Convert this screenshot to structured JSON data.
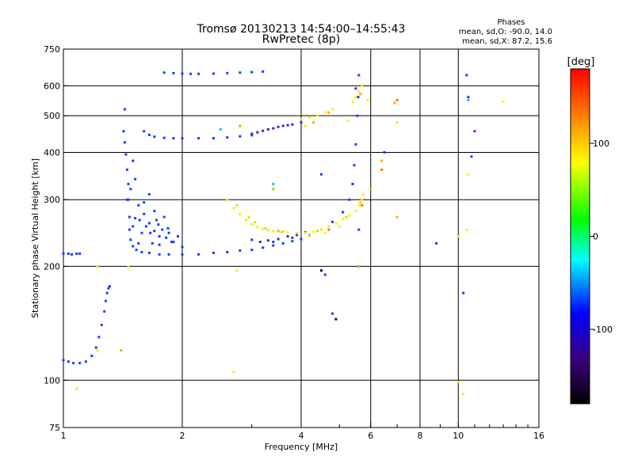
{
  "chart_data": {
    "type": "scatter",
    "title": "Tromsø 20130213 14:54:00–14:55:43",
    "subtitle": "RwPretec (8p)",
    "xlabel": "Frequency [MHz]",
    "ylabel": "Stationary phase Virtual Height [km]",
    "x_scale": "log",
    "y_scale": "log",
    "xlim": [
      1,
      16
    ],
    "ylim": [
      75,
      750
    ],
    "x_ticks": [
      1,
      2,
      4,
      6,
      8,
      10,
      16
    ],
    "x_tick_labels": [
      "1",
      "2",
      "4",
      "6",
      "8",
      "10",
      "16"
    ],
    "x_minor_ticks": [
      3,
      5,
      7,
      9,
      11,
      12,
      13,
      14,
      15
    ],
    "y_ticks": [
      75,
      100,
      200,
      300,
      400,
      500,
      600,
      750
    ],
    "y_tick_labels": [
      "75",
      "100",
      "200",
      "300",
      "400",
      "500",
      "600",
      "750"
    ],
    "grid": true,
    "phases_info": {
      "title": "Phases",
      "line1": "mean, sd,O: -90.0, 14.0",
      "line2": "mean, sd,X:  87.2, 15.6"
    },
    "colorbar": {
      "label": "[deg]",
      "range": [
        -180,
        180
      ],
      "ticks": [
        100,
        0,
        -100
      ],
      "tick_labels": [
        "100",
        "0",
        "-100"
      ],
      "colors": [
        "#ff0000",
        "#ff8000",
        "#ffff00",
        "#00ff00",
        "#00ffff",
        "#0000ff",
        "#3a007a",
        "#000000"
      ]
    },
    "series": [
      {
        "color": "#1040ff",
        "points": [
          [
            1.0,
            216
          ],
          [
            1.03,
            216
          ],
          [
            1.05,
            215
          ],
          [
            1.08,
            216
          ],
          [
            1.1,
            216
          ]
        ]
      },
      {
        "color": "#1040ff",
        "points": [
          [
            1.0,
            113
          ],
          [
            1.03,
            112
          ],
          [
            1.06,
            111
          ],
          [
            1.1,
            111
          ],
          [
            1.14,
            112
          ],
          [
            1.18,
            116
          ],
          [
            1.21,
            122
          ],
          [
            1.23,
            130
          ],
          [
            1.25,
            140
          ],
          [
            1.27,
            152
          ],
          [
            1.28,
            162
          ],
          [
            1.29,
            170
          ],
          [
            1.3,
            175
          ],
          [
            1.31,
            177
          ]
        ]
      },
      {
        "color": "#1040ff",
        "points": [
          [
            1.42,
            455
          ],
          [
            1.43,
            425
          ],
          [
            1.44,
            395
          ],
          [
            1.45,
            360
          ],
          [
            1.46,
            330
          ],
          [
            1.46,
            300
          ],
          [
            1.47,
            270
          ],
          [
            1.47,
            250
          ],
          [
            1.48,
            235
          ],
          [
            1.5,
            226
          ],
          [
            1.53,
            221
          ],
          [
            1.58,
            218
          ],
          [
            1.65,
            217
          ],
          [
            1.75,
            215
          ],
          [
            1.85,
            215
          ],
          [
            2.0,
            215
          ],
          [
            2.2,
            215
          ],
          [
            2.4,
            217
          ],
          [
            2.6,
            218
          ],
          [
            2.8,
            220
          ],
          [
            3.0,
            221
          ],
          [
            3.2,
            224
          ],
          [
            3.4,
            227
          ],
          [
            3.6,
            230
          ],
          [
            3.8,
            233
          ],
          [
            4.0,
            236
          ],
          [
            4.2,
            241
          ],
          [
            4.5,
            250
          ],
          [
            4.8,
            262
          ],
          [
            5.1,
            278
          ],
          [
            5.3,
            300
          ],
          [
            5.4,
            330
          ],
          [
            5.45,
            370
          ],
          [
            5.5,
            420
          ],
          [
            5.55,
            500
          ],
          [
            5.58,
            560
          ],
          [
            5.6,
            640
          ]
        ]
      },
      {
        "color": "#1040ff",
        "points": [
          [
            1.45,
            300
          ],
          [
            1.55,
            290
          ],
          [
            1.6,
            275
          ],
          [
            1.65,
            260
          ],
          [
            1.7,
            248
          ],
          [
            1.75,
            240
          ],
          [
            1.82,
            238
          ],
          [
            1.88,
            232
          ],
          [
            1.52,
            268
          ],
          [
            1.62,
            255
          ],
          [
            1.72,
            265
          ],
          [
            1.78,
            250
          ],
          [
            1.85,
            245
          ],
          [
            1.95,
            240
          ],
          [
            2.0,
            225
          ],
          [
            1.9,
            232
          ],
          [
            1.68,
            230
          ],
          [
            1.58,
            245
          ],
          [
            1.5,
            255
          ],
          [
            1.55,
            230
          ],
          [
            1.75,
            228
          ],
          [
            1.6,
            295
          ],
          [
            1.7,
            280
          ],
          [
            1.8,
            270
          ],
          [
            1.65,
            310
          ],
          [
            1.48,
            320
          ],
          [
            1.52,
            340
          ],
          [
            1.5,
            380
          ],
          [
            1.56,
            265
          ],
          [
            1.66,
            245
          ],
          [
            1.74,
            258
          ],
          [
            1.84,
            252
          ]
        ]
      },
      {
        "color": "#1040ff",
        "points": [
          [
            1.6,
            455
          ],
          [
            1.65,
            445
          ],
          [
            1.7,
            440
          ],
          [
            1.8,
            437
          ],
          [
            1.9,
            436
          ],
          [
            2.0,
            436
          ],
          [
            2.2,
            436
          ],
          [
            2.4,
            436
          ],
          [
            2.6,
            438
          ],
          [
            2.8,
            441
          ],
          [
            3.0,
            444
          ]
        ]
      },
      {
        "color": "#3030c0",
        "points": [
          [
            3.0,
            448
          ],
          [
            3.1,
            452
          ],
          [
            3.2,
            456
          ],
          [
            3.3,
            460
          ],
          [
            3.4,
            463
          ],
          [
            3.5,
            467
          ],
          [
            3.6,
            470
          ],
          [
            3.7,
            472
          ],
          [
            3.8,
            474
          ]
        ]
      },
      {
        "color": "#3030c0",
        "points": [
          [
            3.0,
            235
          ],
          [
            3.15,
            232
          ],
          [
            3.3,
            234
          ],
          [
            3.5,
            236
          ],
          [
            3.7,
            240
          ],
          [
            3.9,
            242
          ],
          [
            4.1,
            246
          ],
          [
            3.4,
            232
          ],
          [
            3.8,
            238
          ]
        ]
      },
      {
        "color": "#1040ff",
        "points": [
          [
            1.8,
            650
          ],
          [
            1.9,
            648
          ],
          [
            2.0,
            646
          ],
          [
            2.1,
            645
          ],
          [
            2.2,
            645
          ],
          [
            2.4,
            646
          ],
          [
            2.6,
            648
          ],
          [
            2.8,
            650
          ],
          [
            3.0,
            652
          ],
          [
            3.2,
            654
          ]
        ]
      },
      {
        "color": "#ffee00",
        "points": [
          [
            2.6,
            300
          ],
          [
            2.7,
            285
          ],
          [
            2.8,
            275
          ],
          [
            2.9,
            265
          ],
          [
            3.0,
            258
          ],
          [
            3.1,
            254
          ],
          [
            3.2,
            251
          ],
          [
            3.3,
            249
          ],
          [
            3.4,
            248
          ],
          [
            3.55,
            246
          ],
          [
            3.7,
            246
          ],
          [
            3.9,
            245
          ],
          [
            4.1,
            245
          ],
          [
            4.3,
            247
          ],
          [
            4.5,
            250
          ],
          [
            4.7,
            255
          ],
          [
            4.9,
            260
          ],
          [
            5.1,
            266
          ],
          [
            5.3,
            272
          ],
          [
            5.5,
            280
          ],
          [
            5.6,
            290
          ],
          [
            5.7,
            300
          ],
          [
            5.75,
            310
          ],
          [
            4.0,
            490
          ],
          [
            4.2,
            495
          ],
          [
            4.4,
            500
          ],
          [
            4.6,
            510
          ],
          [
            4.8,
            520
          ],
          [
            5.4,
            545
          ],
          [
            5.5,
            560
          ],
          [
            5.6,
            580
          ],
          [
            5.7,
            600
          ],
          [
            4.2,
            240
          ],
          [
            4.6,
            245
          ],
          [
            5.0,
            255
          ]
        ]
      },
      {
        "color": "#c8e600",
        "points": [
          [
            2.75,
            290
          ],
          [
            3.05,
            262
          ],
          [
            3.25,
            252
          ],
          [
            3.6,
            247
          ],
          [
            4.4,
            248
          ],
          [
            5.2,
            270
          ],
          [
            5.65,
            295
          ],
          [
            2.95,
            270
          ]
        ]
      },
      {
        "color": "#ffaa00",
        "points": [
          [
            4.3,
            480
          ],
          [
            5.65,
            570
          ],
          [
            6.9,
            540
          ],
          [
            6.4,
            380
          ],
          [
            7.0,
            270
          ],
          [
            6.0,
            320
          ],
          [
            3.5,
            248
          ],
          [
            4.7,
            510
          ]
        ]
      },
      {
        "color": "#1040ff",
        "points": [
          [
            1.43,
            520
          ],
          [
            4.5,
            350
          ],
          [
            4.6,
            190
          ],
          [
            5.6,
            250
          ],
          [
            6.5,
            400
          ],
          [
            8.8,
            230
          ],
          [
            10.5,
            640
          ],
          [
            10.6,
            560
          ],
          [
            11.0,
            455
          ],
          [
            10.8,
            390
          ],
          [
            4.0,
            480
          ],
          [
            5.5,
            590
          ],
          [
            10.3,
            170
          ],
          [
            4.8,
            150
          ]
        ]
      },
      {
        "color": "#00cccc",
        "points": [
          [
            10.6,
            550
          ],
          [
            3.4,
            330
          ],
          [
            2.5,
            460
          ]
        ]
      },
      {
        "color": "#ffee00",
        "points": [
          [
            1.22,
            120
          ],
          [
            1.08,
            95
          ],
          [
            1.22,
            200
          ],
          [
            1.46,
            200
          ],
          [
            2.7,
            105
          ],
          [
            2.75,
            195
          ],
          [
            4.1,
            470
          ],
          [
            5.9,
            550
          ],
          [
            7.0,
            480
          ],
          [
            10.0,
            240
          ],
          [
            10.3,
            92
          ],
          [
            10.5,
            250
          ],
          [
            13.0,
            545
          ],
          [
            5.25,
            485
          ],
          [
            10.0,
            99
          ],
          [
            10.6,
            350
          ]
        ]
      },
      {
        "color": "#80e000",
        "points": [
          [
            1.4,
            120
          ],
          [
            5.6,
            200
          ],
          [
            3.4,
            320
          ],
          [
            2.8,
            470
          ]
        ]
      },
      {
        "color": "#ff7000",
        "points": [
          [
            6.4,
            360
          ],
          [
            7.0,
            550
          ],
          [
            5.7,
            290
          ],
          [
            4.7,
            250
          ]
        ]
      },
      {
        "color": "#1a0060",
        "points": [
          [
            4.9,
            145
          ],
          [
            4.5,
            195
          ]
        ]
      }
    ]
  }
}
